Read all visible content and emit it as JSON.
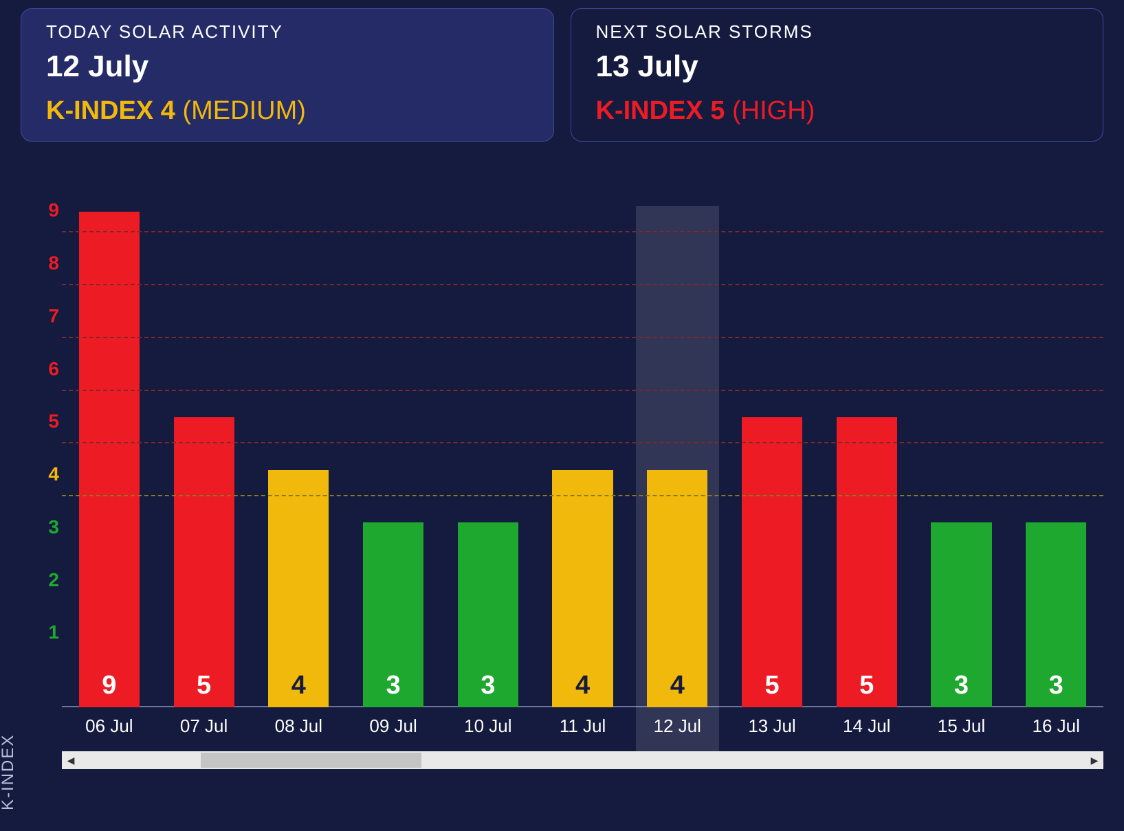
{
  "colors": {
    "background": "#151a3f",
    "card_today_bg": "#252b66",
    "card_border": "#3e4a9c",
    "text": "#ffffff",
    "muted": "#b9bfd9",
    "baseline": "#6e769e",
    "highlight": "rgba(255,255,255,0.12)",
    "green": "#1fa82f",
    "yellow": "#f0b90b",
    "red": "#ed1c24"
  },
  "cards": {
    "today": {
      "label": "TODAY SOLAR ACTIVITY",
      "date": "12 July",
      "kindex_text": "K-INDEX 4",
      "level_text": "(MEDIUM)",
      "color": "#f0b90b"
    },
    "next": {
      "label": "NEXT SOLAR STORMS",
      "date": "13 July",
      "kindex_text": "K-INDEX 5",
      "level_text": "(HIGH)",
      "color": "#ed1c24"
    }
  },
  "chart": {
    "type": "bar",
    "y_axis_title": "K-INDEX",
    "y_max": 9.5,
    "y_ticks": [
      {
        "v": 1,
        "color": "#1fa82f"
      },
      {
        "v": 2,
        "color": "#1fa82f"
      },
      {
        "v": 3,
        "color": "#1fa82f"
      },
      {
        "v": 4,
        "color": "#f0b90b"
      },
      {
        "v": 5,
        "color": "#ed1c24"
      },
      {
        "v": 6,
        "color": "#ed1c24"
      },
      {
        "v": 7,
        "color": "#ed1c24"
      },
      {
        "v": 8,
        "color": "#ed1c24"
      },
      {
        "v": 9,
        "color": "#ed1c24"
      }
    ],
    "gridlines": [
      {
        "v": 4,
        "color": "#8a7a1f"
      },
      {
        "v": 5,
        "color": "#7a2a2a"
      },
      {
        "v": 6,
        "color": "#7a2a2a"
      },
      {
        "v": 7,
        "color": "#7a2a2a"
      },
      {
        "v": 8,
        "color": "#7a2a2a"
      },
      {
        "v": 9,
        "color": "#7a2a2a"
      }
    ],
    "highlight_index": 6,
    "bar_value_label_fontsize": 38,
    "bars": [
      {
        "label": "06 Jul",
        "value": 9,
        "height": 9.4,
        "color": "#ed1c24",
        "text_color": "#ffffff"
      },
      {
        "label": "07 Jul",
        "value": 5,
        "height": 5.5,
        "color": "#ed1c24",
        "text_color": "#ffffff"
      },
      {
        "label": "08 Jul",
        "value": 4,
        "height": 4.5,
        "color": "#f0b90b",
        "text_color": "#151a3f"
      },
      {
        "label": "09 Jul",
        "value": 3,
        "height": 3.5,
        "color": "#1fa82f",
        "text_color": "#ffffff"
      },
      {
        "label": "10 Jul",
        "value": 3,
        "height": 3.5,
        "color": "#1fa82f",
        "text_color": "#ffffff"
      },
      {
        "label": "11 Jul",
        "value": 4,
        "height": 4.5,
        "color": "#f0b90b",
        "text_color": "#151a3f"
      },
      {
        "label": "12 Jul",
        "value": 4,
        "height": 4.5,
        "color": "#f0b90b",
        "text_color": "#151a3f"
      },
      {
        "label": "13 Jul",
        "value": 5,
        "height": 5.5,
        "color": "#ed1c24",
        "text_color": "#ffffff"
      },
      {
        "label": "14 Jul",
        "value": 5,
        "height": 5.5,
        "color": "#ed1c24",
        "text_color": "#ffffff"
      },
      {
        "label": "15 Jul",
        "value": 3,
        "height": 3.5,
        "color": "#1fa82f",
        "text_color": "#ffffff"
      },
      {
        "label": "16 Jul",
        "value": 3,
        "height": 3.5,
        "color": "#1fa82f",
        "text_color": "#ffffff"
      }
    ]
  },
  "scrollbar": {
    "thumb_left_pct": 12,
    "thumb_width_pct": 22
  }
}
